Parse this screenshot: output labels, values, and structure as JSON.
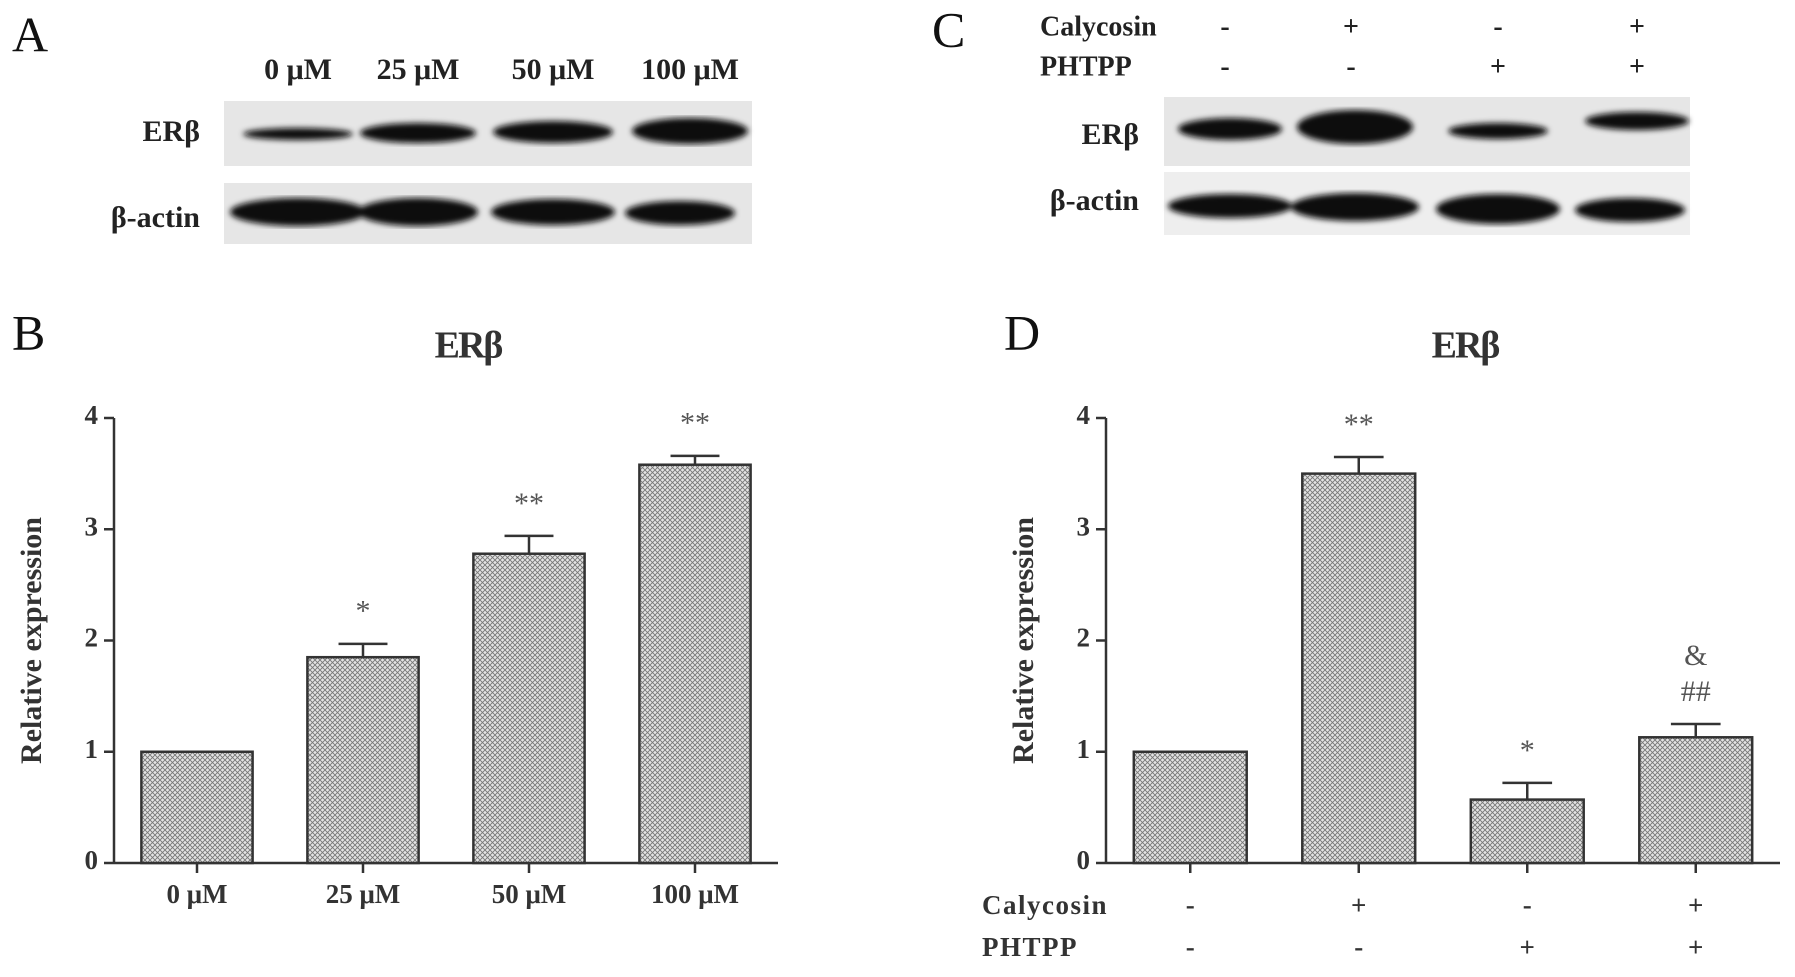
{
  "blot_a": {
    "panel_label": "A",
    "lanes": [
      "0 μM",
      "25 μM",
      "50 μM",
      "100 μM"
    ],
    "rows": [
      "ERβ",
      "β-actin"
    ]
  },
  "blot_c": {
    "panel_label": "C",
    "conditions": [
      {
        "name": "Calycosin",
        "values": [
          "-",
          "+",
          "-",
          "+"
        ]
      },
      {
        "name": "PHTPP",
        "values": [
          "-",
          "-",
          "+",
          "+"
        ]
      }
    ],
    "rows": [
      "ERβ",
      "β-actin"
    ]
  },
  "chart_data": [
    {
      "type": "bar",
      "panel_label": "B",
      "title": "ERβ",
      "y_label": "Relative expression",
      "categories": [
        "0 μM",
        "25 μM",
        "50 μM",
        "100 μM"
      ],
      "values": [
        1,
        1.85,
        2.78,
        3.58
      ],
      "errors": [
        null,
        0.12,
        0.16,
        0.08
      ],
      "annotations": [
        [],
        [
          "*"
        ],
        [
          "**"
        ],
        [
          "**"
        ]
      ],
      "ylim": [
        0,
        4
      ],
      "yticks": [
        0,
        1,
        2,
        3,
        4
      ]
    },
    {
      "type": "bar",
      "panel_label": "D",
      "title": "ERβ",
      "y_label": "Relative expression",
      "conditions": [
        {
          "name": "Calycosin",
          "values": [
            "-",
            "+",
            "-",
            "+"
          ]
        },
        {
          "name": "PHTPP",
          "values": [
            "-",
            "-",
            "+",
            "+"
          ]
        }
      ],
      "values": [
        1,
        3.5,
        0.57,
        1.13
      ],
      "errors": [
        null,
        0.15,
        0.15,
        0.12
      ],
      "annotations": [
        [],
        [
          "**"
        ],
        [
          "*"
        ],
        [
          "##",
          "&"
        ]
      ],
      "ylim": [
        0,
        4
      ],
      "yticks": [
        0,
        1,
        2,
        3,
        4
      ]
    }
  ]
}
